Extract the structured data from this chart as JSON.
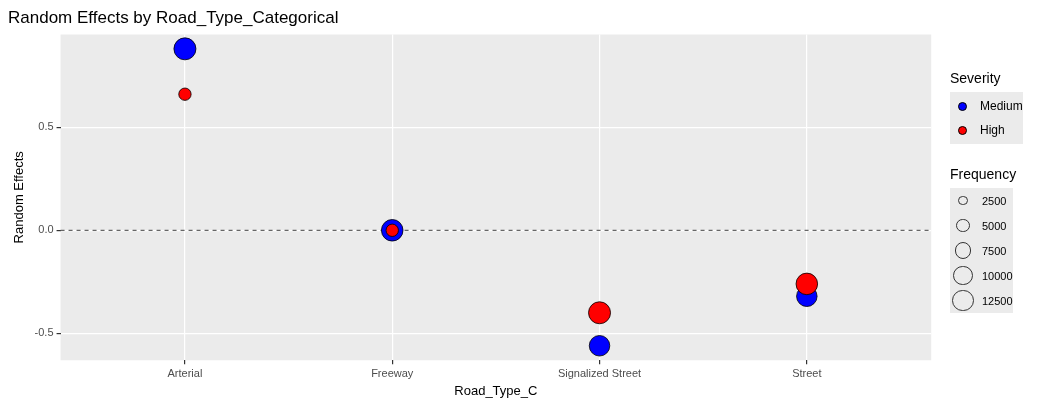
{
  "chart_data": {
    "type": "bubble",
    "title": "Random Effects by Road_Type_Categorical",
    "xlabel": "Road_Type_C",
    "ylabel": "Random Effects",
    "legend_title": "Severity",
    "categories": [
      "Arterial",
      "Freeway",
      "Signalized Street",
      "Street"
    ],
    "series": [
      {
        "name": "Medium",
        "color": "#0000ff",
        "values": [
          0.88,
          0,
          -0.56,
          -0.32
        ],
        "sizes": [
          13000,
          12500,
          11300,
          11300
        ]
      },
      {
        "name": "High",
        "color": "#ff0000",
        "values": [
          0.66,
          0,
          -0.4,
          -0.26
        ],
        "sizes": [
          4100,
          4100,
          13000,
          12500
        ]
      }
    ],
    "size_legend": [
      2500,
      5000,
      7500,
      10000,
      12500
    ],
    "annotations": [
      "Frequency"
    ],
    "ylim": [
      -0.63,
      0.95
    ],
    "yticks": [
      -0.5,
      {
        "value": 0,
        "label": "0.0"
      },
      0.5
    ],
    "ref_lines": [
      {
        "axis": "y",
        "value": 0,
        "color": "#666666",
        "line_style": "dashed"
      }
    ],
    "grid": true,
    "legend": "right",
    "marker": "circle"
  }
}
